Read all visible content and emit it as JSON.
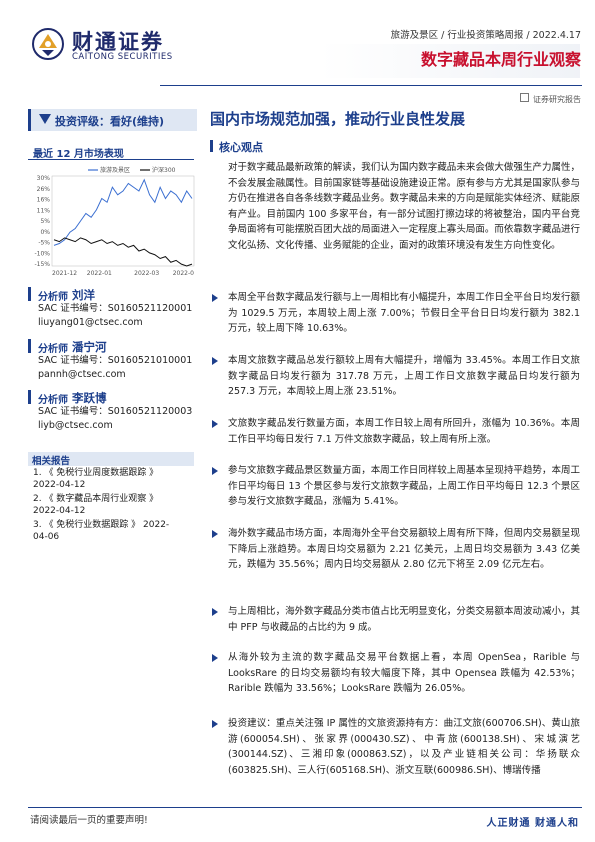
{
  "header": {
    "logo_cn": "财通证券",
    "logo_en": "CAITONG SECURITIES",
    "meta": "旅游及景区 / 行业投资策略周报 / 2022.4.17",
    "report_title": "数字藏品本周行业观察",
    "report_type": "证券研究报告"
  },
  "sidebar": {
    "rating": "投资评级：看好(维持)",
    "chart_title": "最近 12 月市场表现",
    "analysts": [
      {
        "label": "分析师",
        "name": "刘洋",
        "cert": "SAC 证书编号：S0160521120001",
        "email": "liuyang01@ctsec.com"
      },
      {
        "label": "分析师",
        "name": "潘宁河",
        "cert": "SAC 证书编号：S0160521010001",
        "email": "pannh@ctsec.com"
      },
      {
        "label": "分析师",
        "name": "李跃博",
        "cert": "SAC 证书编号：S0160521120003",
        "email": "liyb@ctsec.com"
      }
    ],
    "related_title": "相关报告",
    "related": [
      {
        "line1": "1. 《 免税行业周度数据跟踪 》",
        "line2": "2022-04-12"
      },
      {
        "line1": "2. 《 数字藏品本周行业观察 》",
        "line2": "2022-04-12"
      },
      {
        "line1": "3. 《 免税行业数据跟踪 》 2022-",
        "line2": "04-06"
      }
    ]
  },
  "chart_data": {
    "type": "line",
    "title": "最近 12 月市场表现",
    "series": [
      {
        "name": "旅游及景区",
        "color": "#3b6fd1",
        "values": [
          -5,
          -4,
          -2,
          2,
          4,
          8,
          12,
          10,
          14,
          20,
          18,
          26,
          22,
          24,
          28,
          26,
          24,
          30,
          22,
          18,
          26,
          20,
          24,
          22,
          18,
          24,
          20
        ]
      },
      {
        "name": "沪深300",
        "color": "#111111",
        "values": [
          -2,
          -3,
          -1,
          -2,
          -3,
          -1,
          -2,
          -4,
          -3,
          -2,
          -4,
          -3,
          -5,
          -4,
          -6,
          -5,
          -8,
          -7,
          -9,
          -10,
          -12,
          -11,
          -14,
          -13,
          -15,
          -16,
          -15
        ]
      }
    ],
    "x_ticks": [
      "2021-12",
      "2022-01",
      "2022-03",
      "2022-0"
    ],
    "y_ticks": [
      "30%",
      "26%",
      "16%",
      "11%",
      "5%",
      "0%",
      "-5%",
      "-10%",
      "-15%"
    ],
    "ylim": [
      -16,
      32
    ]
  },
  "main": {
    "headline": "国内市场规范加强，推动行业良性发展",
    "core_label": "核心观点",
    "intro": "对于数字藏品最新政策的解读，我们认为国内数字藏品未来会做大做强生产力属性，不会发展金融属性。目前国家链等基础设施建设正常。原有参与方尤其是国家队参与方仍在推进各自各条线数字藏品业务。数字藏品未来的方向是赋能实体经济、赋能原有产业。目前国内 100 多家平台，有一部分试图打擦边球的将被整治，国内平台竞争局面将有可能摆脱百团大战的局面进入一定程度上寡头局面。而依靠数字藏品进行文化弘扬、文化传播、业务赋能的企业，面对的政策环境没有发生方向性变化。",
    "bullets": [
      "本周全平台数字藏品发行额与上一周相比有小幅提升，本周工作日全平台日均发行额为 1029.5 万元，本周较上周上涨 7.00%；节假日全平台日日均发行额为 382.1 万元，较上周下降 10.63%。",
      "本周文旅数字藏品总发行额较上周有大幅提升，增幅为 33.45%。本周工作日文旅数字藏品日均发行额为 317.78 万元，上周工作日文旅数字藏品日均发行额为 257.3 万元，本周较上周上涨 23.51%。",
      "文旅数字藏品发行数量方面，本周工作日较上周有所回升，涨幅为 10.36%。本周工作日平均每日发行 7.1 万件文旅数字藏品，较上周有所上涨。",
      "参与文旅数字藏品景区数量方面，本周工作日同样较上周基本呈现持平趋势，本周工作日平均每日 13 个景区参与发行文旅数字藏品，上周工作日平均每日 12.3 个景区参与发行文旅数字藏品，涨幅为 5.41%。",
      "海外数字藏品市场方面，本周海外全平台交易额较上周有所下降，但周内交易额呈现下降后上涨趋势。本周日均交易额为 2.21 亿美元，上周日均交易额为 3.43 亿美元，跌幅为 35.56%；周内日均交易额从 2.80 亿元下将至 2.09 亿元左右。",
      "与上周相比，海外数字藏品分类市值占比无明显变化，分类交易额本周波动减小，其中 PFP 与收藏品的占比约为 9 成。",
      "从海外较为主流的数字藏品交易平台数据上看，本周 OpenSea，Rarible 与 LooksRare 的日均交易额均有较大幅度下降，其中 Opensea 跌幅为 42.53%；Rarible 跌幅为 33.56%；LooksRare 跌幅为 26.05%。",
      "投资建议：重点关注强 IP 属性的文旅资源持有方：曲江文旅(600706.SH)、黄山旅游(600054.SH)、张家界(000430.SZ)、中青旅(600138.SH)、宋城演艺(300144.SZ)、三湘印象(000863.SZ)，以及产业链相关公司：华扬联众(603825.SH)、三人行(605168.SH)、浙文互联(600986.SH)、博瑞传播"
    ]
  },
  "footer": {
    "left": "请阅读最后一页的重要声明!",
    "right": "人正财通  财通人和"
  }
}
